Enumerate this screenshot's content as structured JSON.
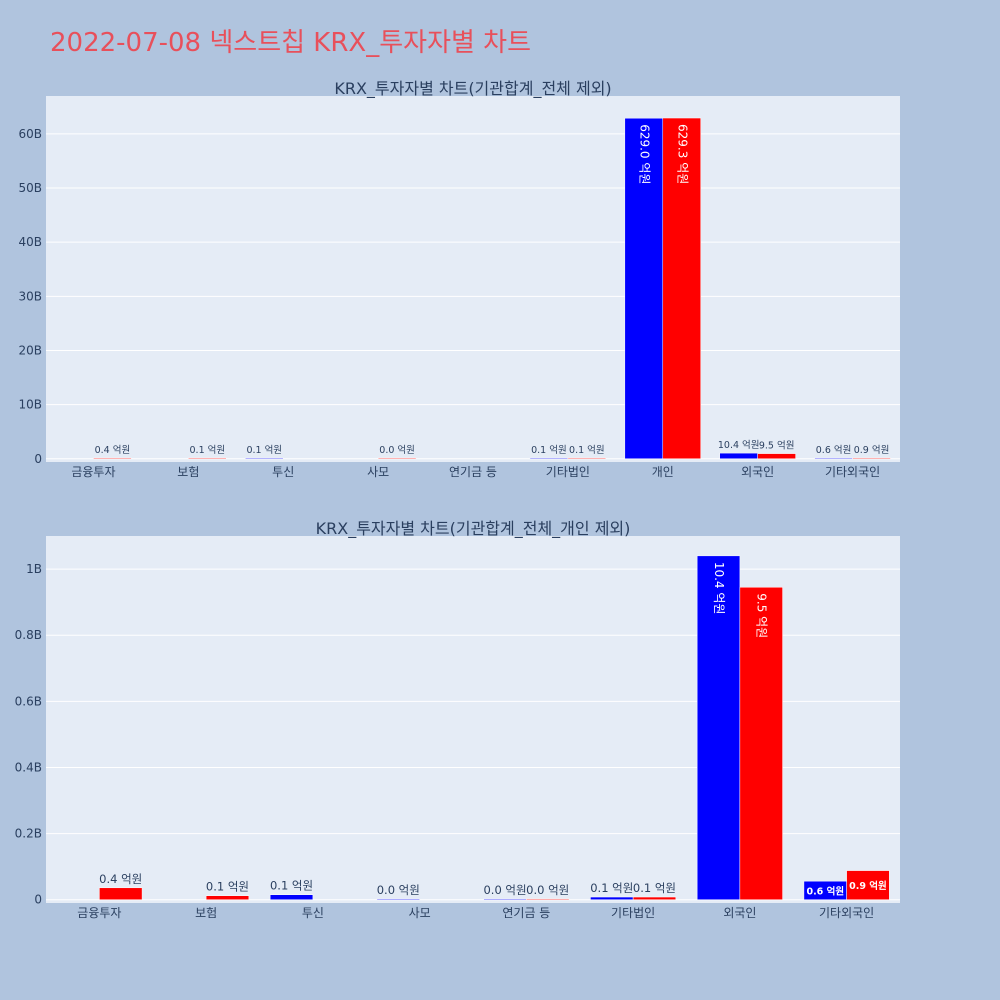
{
  "page": {
    "title": "2022-07-08 넥스트칩 KRX_투자자별 차트"
  },
  "colors": {
    "background": "#b0c4de",
    "plot_bg": "#e5ecf6",
    "buy": "#0000ff",
    "sell": "#ff0000",
    "title": "#e8505b",
    "text": "#2a3f5f"
  },
  "chart_data": [
    {
      "type": "bar",
      "title": "KRX_투자자별 차트(기관합계_전체 제외)",
      "categories": [
        "금융투자",
        "보험",
        "투신",
        "사모",
        "연기금 등",
        "기타법인",
        "개인",
        "외국인",
        "기타외국인"
      ],
      "series": [
        {
          "color": "#0000ff",
          "values": [
            0,
            0,
            15000000,
            0,
            0,
            10000000,
            62900000000,
            1040000000,
            60000000
          ],
          "labels": [
            "",
            "",
            "0.1 억원",
            "",
            "",
            "0.1 억원",
            "629.0 억원",
            "10.4 억원",
            "0.6 억원"
          ]
        },
        {
          "color": "#ff0000",
          "values": [
            38000000,
            12000000,
            0,
            1000000,
            0,
            10000000,
            62930000000,
            950000000,
            90000000
          ],
          "labels": [
            "0.4 억원",
            "0.1 억원",
            "",
            "0.0 억원",
            "",
            "0.1 억원",
            "629.3 억원",
            "9.5 억원",
            "0.9 억원"
          ]
        }
      ],
      "y_ticks": [
        {
          "value": 0,
          "label": "0"
        },
        {
          "value": 10000000000,
          "label": "10B"
        },
        {
          "value": 20000000000,
          "label": "20B"
        },
        {
          "value": 30000000000,
          "label": "30B"
        },
        {
          "value": 40000000000,
          "label": "40B"
        },
        {
          "value": 50000000000,
          "label": "50B"
        },
        {
          "value": 60000000000,
          "label": "60B"
        }
      ],
      "ylim": [
        -600000000,
        67000000000
      ],
      "grid": true
    },
    {
      "type": "bar",
      "title": "KRX_투자자별 차트(기관합계_전체_개인 제외)",
      "categories": [
        "금융투자",
        "보험",
        "투신",
        "사모",
        "연기금 등",
        "기타법인",
        "외국인",
        "기타외국인"
      ],
      "series": [
        {
          "color": "#0000ff",
          "values": [
            0,
            0,
            15000000,
            1000000,
            1000000,
            8000000,
            1040000000,
            56000000
          ],
          "labels": [
            "",
            "",
            "0.1 억원",
            "0.0 억원",
            "0.0 억원",
            "0.1 억원",
            "10.4 억원",
            "0.6 억원"
          ]
        },
        {
          "color": "#ff0000",
          "values": [
            36000000,
            12000000,
            0,
            0,
            1000000,
            8000000,
            945000000,
            88000000
          ],
          "labels": [
            "0.4 억원",
            "0.1 억원",
            "",
            "",
            "0.0 억원",
            "0.1 억원",
            "9.5 억원",
            "0.9 억원"
          ]
        }
      ],
      "y_ticks": [
        {
          "value": 0,
          "label": "0"
        },
        {
          "value": 200000000,
          "label": "0.2B"
        },
        {
          "value": 400000000,
          "label": "0.4B"
        },
        {
          "value": 600000000,
          "label": "0.6B"
        },
        {
          "value": 800000000,
          "label": "0.8B"
        },
        {
          "value": 1000000000,
          "label": "1B"
        }
      ],
      "ylim": [
        -10000000,
        1100000000
      ],
      "grid": true
    }
  ]
}
